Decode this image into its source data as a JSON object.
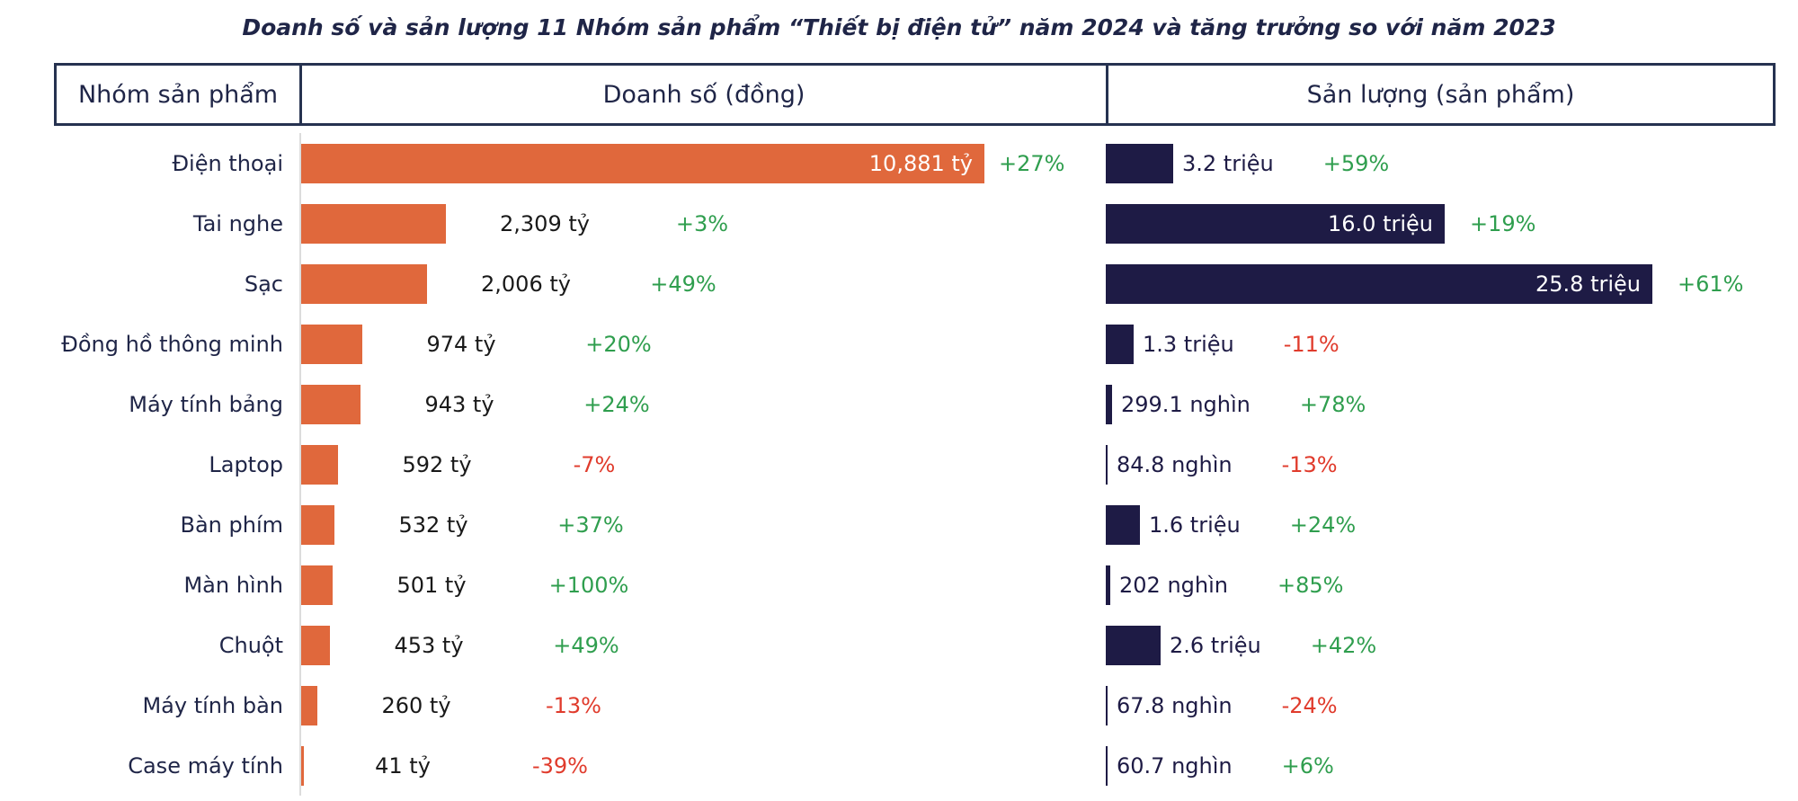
{
  "title": "Doanh số và sản lượng 11 Nhóm sản phẩm “Thiết bị điện tử” năm 2024 và tăng trưởng so với năm 2023",
  "table_header": {
    "group": "Nhóm sản phẩm",
    "revenue": "Doanh số (đồng)",
    "volume": "Sản lượng (sản phẩm)"
  },
  "colors": {
    "revenue_bar": "#e0683c",
    "volume_bar": "#1e1b45",
    "positive_growth": "#2f9e4e",
    "negative_growth": "#e03b2c",
    "heading_text": "#1f2547",
    "axis_line": "#dcdcdc"
  },
  "chart_data": {
    "type": "bar",
    "orientation": "horizontal",
    "title": "Doanh số và sản lượng 11 Nhóm sản phẩm “Thiết bị điện tử” năm 2024 và tăng trưởng so với năm 2023",
    "grid": false,
    "legend": false,
    "categories": [
      "Điện thoại",
      "Tai nghe",
      "Sạc",
      "Đồng hồ thông minh",
      "Máy tính bảng",
      "Laptop",
      "Bàn phím",
      "Màn hình",
      "Chuột",
      "Máy tính bàn",
      "Case máy tính"
    ],
    "series": [
      {
        "name": "Doanh số (đồng)",
        "unit": "tỷ đồng",
        "axis_max": 10881,
        "values": [
          10881,
          2309,
          2006,
          974,
          943,
          592,
          532,
          501,
          453,
          260,
          41
        ],
        "labels": [
          "10,881 tỷ",
          "2,309 tỷ",
          "2,006 tỷ",
          "974 tỷ",
          "943 tỷ",
          "592 tỷ",
          "532 tỷ",
          "501 tỷ",
          "453 tỷ",
          "260 tỷ",
          "41 tỷ"
        ],
        "growth": [
          "+27%",
          "+3%",
          "+49%",
          "+20%",
          "+24%",
          "-7%",
          "+37%",
          "+100%",
          "+49%",
          "-13%",
          "-39%"
        ],
        "label_inside": [
          true,
          false,
          false,
          false,
          false,
          false,
          false,
          false,
          false,
          false,
          false
        ]
      },
      {
        "name": "Sản lượng (sản phẩm)",
        "unit": "nghìn sản phẩm",
        "axis_max": 25800,
        "values": [
          3200,
          16000,
          25800,
          1300,
          299.1,
          84.8,
          1600,
          202,
          2600,
          67.8,
          60.7
        ],
        "labels": [
          "3.2 triệu",
          "16.0 triệu",
          "25.8 triệu",
          "1.3 triệu",
          "299.1 nghìn",
          "84.8 nghìn",
          "1.6 triệu",
          "202 nghìn",
          "2.6 triệu",
          "67.8 nghìn",
          "60.7 nghìn"
        ],
        "growth": [
          "+59%",
          "+19%",
          "+61%",
          "-11%",
          "+78%",
          "-13%",
          "+24%",
          "+85%",
          "+42%",
          "-24%",
          "+6%"
        ],
        "label_inside": [
          false,
          true,
          true,
          false,
          false,
          false,
          false,
          false,
          false,
          false,
          false
        ]
      }
    ]
  }
}
